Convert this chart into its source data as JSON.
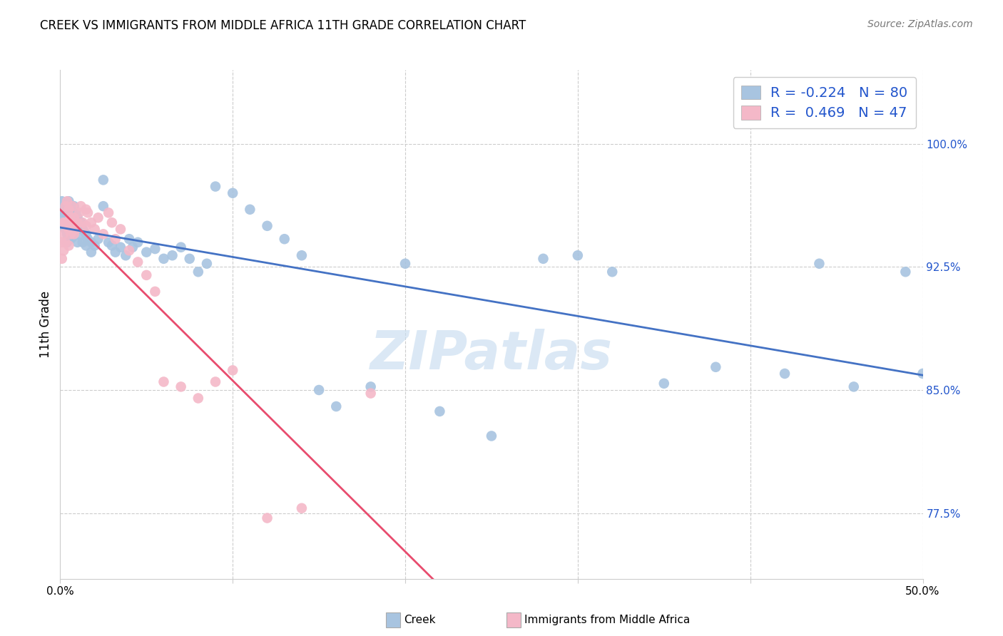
{
  "title": "CREEK VS IMMIGRANTS FROM MIDDLE AFRICA 11TH GRADE CORRELATION CHART",
  "source": "Source: ZipAtlas.com",
  "ylabel": "11th Grade",
  "ytick_labels": [
    "77.5%",
    "85.0%",
    "92.5%",
    "100.0%"
  ],
  "ytick_values": [
    0.775,
    0.85,
    0.925,
    1.0
  ],
  "xlim": [
    0.0,
    0.5
  ],
  "ylim": [
    0.735,
    1.045
  ],
  "creek_color": "#a8c4e0",
  "creek_line_color": "#4472c4",
  "immigrants_color": "#f4b8c8",
  "immigrants_line_color": "#e84c6e",
  "R_creek": -0.224,
  "N_creek": 80,
  "R_immigrants": 0.469,
  "N_immigrants": 47,
  "legend_R_color": "#2255cc",
  "watermark_color": "#c8ddf0",
  "creek_points_x": [
    0.001,
    0.001,
    0.002,
    0.002,
    0.003,
    0.003,
    0.003,
    0.004,
    0.004,
    0.004,
    0.004,
    0.005,
    0.005,
    0.005,
    0.005,
    0.006,
    0.006,
    0.006,
    0.007,
    0.007,
    0.007,
    0.008,
    0.008,
    0.008,
    0.009,
    0.009,
    0.01,
    0.01,
    0.01,
    0.012,
    0.012,
    0.013,
    0.013,
    0.015,
    0.015,
    0.016,
    0.018,
    0.018,
    0.02,
    0.022,
    0.025,
    0.025,
    0.028,
    0.03,
    0.032,
    0.035,
    0.038,
    0.04,
    0.042,
    0.045,
    0.05,
    0.055,
    0.06,
    0.065,
    0.07,
    0.075,
    0.08,
    0.085,
    0.09,
    0.1,
    0.11,
    0.12,
    0.13,
    0.14,
    0.15,
    0.16,
    0.18,
    0.2,
    0.22,
    0.25,
    0.28,
    0.3,
    0.32,
    0.35,
    0.38,
    0.42,
    0.44,
    0.46,
    0.49,
    0.5
  ],
  "creek_points_y": [
    0.965,
    0.96,
    0.958,
    0.952,
    0.96,
    0.955,
    0.948,
    0.96,
    0.952,
    0.945,
    0.94,
    0.965,
    0.958,
    0.952,
    0.943,
    0.958,
    0.95,
    0.942,
    0.96,
    0.952,
    0.943,
    0.962,
    0.955,
    0.947,
    0.958,
    0.95,
    0.955,
    0.948,
    0.94,
    0.952,
    0.944,
    0.948,
    0.94,
    0.945,
    0.938,
    0.942,
    0.94,
    0.934,
    0.938,
    0.942,
    0.978,
    0.962,
    0.94,
    0.938,
    0.934,
    0.937,
    0.932,
    0.942,
    0.937,
    0.94,
    0.934,
    0.936,
    0.93,
    0.932,
    0.937,
    0.93,
    0.922,
    0.927,
    0.974,
    0.97,
    0.96,
    0.95,
    0.942,
    0.932,
    0.85,
    0.84,
    0.852,
    0.927,
    0.837,
    0.822,
    0.93,
    0.932,
    0.922,
    0.854,
    0.864,
    0.86,
    0.927,
    0.852,
    0.922,
    0.86
  ],
  "immigrants_points_x": [
    0.001,
    0.001,
    0.002,
    0.002,
    0.002,
    0.003,
    0.003,
    0.003,
    0.004,
    0.004,
    0.005,
    0.005,
    0.005,
    0.006,
    0.006,
    0.007,
    0.007,
    0.008,
    0.008,
    0.009,
    0.01,
    0.011,
    0.012,
    0.013,
    0.015,
    0.015,
    0.016,
    0.018,
    0.02,
    0.022,
    0.025,
    0.028,
    0.03,
    0.032,
    0.035,
    0.04,
    0.045,
    0.05,
    0.055,
    0.06,
    0.07,
    0.08,
    0.09,
    0.1,
    0.12,
    0.14,
    0.18
  ],
  "immigrants_points_y": [
    0.94,
    0.93,
    0.952,
    0.945,
    0.935,
    0.962,
    0.952,
    0.94,
    0.965,
    0.952,
    0.96,
    0.948,
    0.938,
    0.955,
    0.945,
    0.962,
    0.952,
    0.955,
    0.945,
    0.948,
    0.952,
    0.958,
    0.962,
    0.952,
    0.96,
    0.95,
    0.958,
    0.952,
    0.948,
    0.955,
    0.945,
    0.958,
    0.952,
    0.942,
    0.948,
    0.935,
    0.928,
    0.92,
    0.91,
    0.855,
    0.852,
    0.845,
    0.855,
    0.862,
    0.772,
    0.778,
    0.848
  ]
}
